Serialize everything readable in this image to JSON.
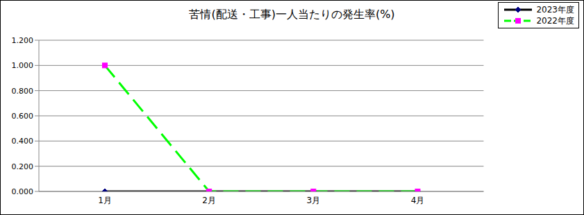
{
  "chart_data": {
    "type": "line",
    "title": "苦情(配送・工事)一人当たりの発生率(%)",
    "categories": [
      "1月",
      "2月",
      "3月",
      "4月"
    ],
    "series": [
      {
        "name": "2023年度",
        "color": "#000000",
        "marker": "diamond",
        "line_style": "solid",
        "values": [
          0,
          0,
          0,
          0
        ]
      },
      {
        "name": "2022年度",
        "color": "#00ff00",
        "marker": "square",
        "line_style": "dashed",
        "values": [
          1.0,
          0,
          0,
          0
        ]
      }
    ],
    "ylim": [
      0,
      1.2
    ],
    "yticks": [
      {
        "value": 0,
        "label": "0.000"
      },
      {
        "value": 0.2,
        "label": "0.200"
      },
      {
        "value": 0.4,
        "label": "0.400"
      },
      {
        "value": 0.6,
        "label": "0.600"
      },
      {
        "value": 0.8,
        "label": "0.800"
      },
      {
        "value": 1.0,
        "label": "1.000"
      },
      {
        "value": 1.2,
        "label": "1.200"
      }
    ],
    "grid": true,
    "legend": "top-right"
  }
}
